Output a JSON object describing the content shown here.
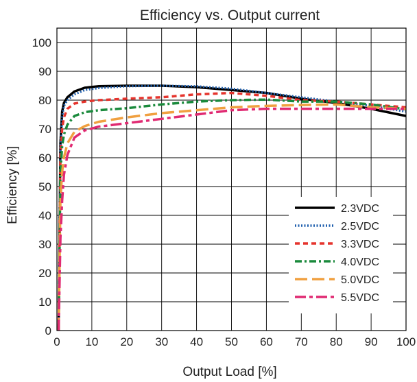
{
  "chart_data": {
    "type": "line",
    "title": "Efficiency vs. Output current",
    "xlabel": "Output Load [%]",
    "ylabel": "Efficiency [%]",
    "xlim": [
      0,
      100
    ],
    "ylim": [
      0,
      105
    ],
    "x_ticks": [
      "0",
      "10",
      "20",
      "30",
      "40",
      "50",
      "60",
      "70",
      "80",
      "90",
      "100"
    ],
    "y_ticks": [
      "0",
      "10",
      "20",
      "30",
      "40",
      "50",
      "60",
      "70",
      "80",
      "90",
      "100"
    ],
    "grid": true,
    "legend_position": "bottom-right",
    "series": [
      {
        "name": "2.3VDC",
        "color": "#000000",
        "dash": "solid",
        "points": [
          [
            0.5,
            0
          ],
          [
            1,
            65
          ],
          [
            1.5,
            76
          ],
          [
            2,
            79
          ],
          [
            3,
            81
          ],
          [
            5,
            83
          ],
          [
            8,
            84.3
          ],
          [
            12,
            84.8
          ],
          [
            20,
            85
          ],
          [
            30,
            85
          ],
          [
            40,
            84.5
          ],
          [
            50,
            83.5
          ],
          [
            60,
            82.5
          ],
          [
            70,
            80.5
          ],
          [
            80,
            79
          ],
          [
            90,
            77
          ],
          [
            100,
            74.5
          ]
        ]
      },
      {
        "name": "2.5VDC",
        "color": "#1f5fad",
        "dash": "dotted",
        "points": [
          [
            0.5,
            0
          ],
          [
            1,
            63
          ],
          [
            1.5,
            74
          ],
          [
            2,
            78
          ],
          [
            3,
            80
          ],
          [
            5,
            82
          ],
          [
            8,
            83.5
          ],
          [
            12,
            84.2
          ],
          [
            20,
            84.8
          ],
          [
            30,
            85
          ],
          [
            40,
            84.8
          ],
          [
            50,
            84
          ],
          [
            60,
            82.5
          ],
          [
            70,
            81
          ],
          [
            80,
            79.5
          ],
          [
            90,
            78
          ],
          [
            100,
            76
          ]
        ]
      },
      {
        "name": "3.3VDC",
        "color": "#e5342d",
        "dash": "dashed",
        "points": [
          [
            0.5,
            0
          ],
          [
            1,
            60
          ],
          [
            1.5,
            70
          ],
          [
            2,
            74
          ],
          [
            3,
            77
          ],
          [
            5,
            78.8
          ],
          [
            8,
            79.5
          ],
          [
            12,
            80
          ],
          [
            20,
            80.5
          ],
          [
            30,
            81
          ],
          [
            40,
            82
          ],
          [
            50,
            82.5
          ],
          [
            60,
            81.5
          ],
          [
            70,
            80
          ],
          [
            80,
            79.5
          ],
          [
            90,
            78.5
          ],
          [
            100,
            77.5
          ]
        ]
      },
      {
        "name": "4.0VDC",
        "color": "#1a8a3c",
        "dash": "dashdot",
        "points": [
          [
            0.5,
            0
          ],
          [
            1,
            55
          ],
          [
            1.5,
            64
          ],
          [
            2,
            68
          ],
          [
            3,
            71.5
          ],
          [
            5,
            74.5
          ],
          [
            8,
            75.8
          ],
          [
            12,
            76.5
          ],
          [
            20,
            77.2
          ],
          [
            30,
            78.5
          ],
          [
            40,
            79.5
          ],
          [
            50,
            80
          ],
          [
            60,
            80.2
          ],
          [
            70,
            79.5
          ],
          [
            80,
            79.5
          ],
          [
            90,
            78.5
          ],
          [
            100,
            76.8
          ]
        ]
      },
      {
        "name": "5.0VDC",
        "color": "#f0a040",
        "dash": "longdash",
        "points": [
          [
            0.5,
            0
          ],
          [
            1,
            45
          ],
          [
            1.5,
            55
          ],
          [
            2,
            60
          ],
          [
            3,
            65
          ],
          [
            5,
            69
          ],
          [
            8,
            71
          ],
          [
            12,
            72.5
          ],
          [
            20,
            74
          ],
          [
            30,
            75.5
          ],
          [
            40,
            76.5
          ],
          [
            50,
            77.5
          ],
          [
            60,
            78
          ],
          [
            70,
            78.3
          ],
          [
            80,
            78.5
          ],
          [
            90,
            77.5
          ],
          [
            100,
            77
          ]
        ]
      },
      {
        "name": "5.5VDC",
        "color": "#e02a72",
        "dash": "dashdot-long",
        "points": [
          [
            0.5,
            0
          ],
          [
            1,
            32
          ],
          [
            1.5,
            45
          ],
          [
            2,
            54
          ],
          [
            3,
            61
          ],
          [
            5,
            67
          ],
          [
            8,
            69.5
          ],
          [
            12,
            70.8
          ],
          [
            20,
            72
          ],
          [
            30,
            73.5
          ],
          [
            40,
            75
          ],
          [
            50,
            76.5
          ],
          [
            60,
            77
          ],
          [
            70,
            77
          ],
          [
            80,
            77
          ],
          [
            90,
            77
          ],
          [
            100,
            77
          ]
        ]
      }
    ]
  }
}
